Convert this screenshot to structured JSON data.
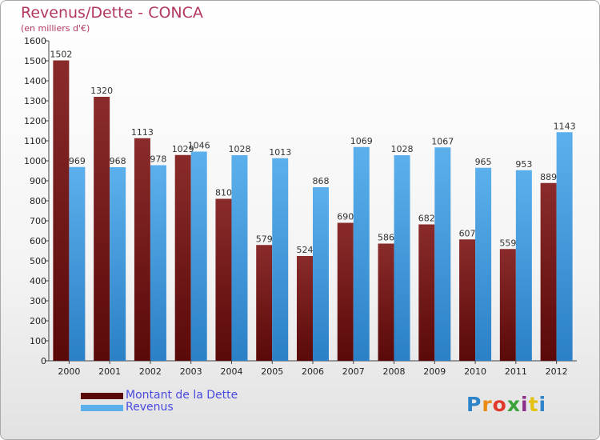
{
  "title": "Revenus/Dette - CONCA",
  "subtitle": "(en milliers d'€)",
  "logo": {
    "text": "Proxiti",
    "colors": [
      "#2d84c8",
      "#e98b14",
      "#e2392e",
      "#3ca33b",
      "#8c2f8c",
      "#e3c212",
      "#2d84c8"
    ]
  },
  "colors": {
    "debt_dark": "#5a0909",
    "debt_light": "#8a2b2b",
    "revenue_dark": "#2b80c6",
    "revenue_light": "#5bb0ec",
    "title": "#b2385e",
    "legend_text": "#4a4adf"
  },
  "chart_data": {
    "type": "bar",
    "categories": [
      "2000",
      "2001",
      "2002",
      "2003",
      "2004",
      "2005",
      "2006",
      "2007",
      "2008",
      "2009",
      "2010",
      "2011",
      "2012"
    ],
    "series": [
      {
        "name": "Montant de la Dette",
        "values": [
          1502,
          1320,
          1113,
          1029,
          810,
          579,
          524,
          690,
          586,
          682,
          607,
          559,
          889
        ]
      },
      {
        "name": "Revenus",
        "values": [
          969,
          968,
          978,
          1046,
          1028,
          1013,
          868,
          1069,
          1028,
          1067,
          965,
          953,
          1143
        ]
      }
    ],
    "ylim": [
      0,
      1600
    ],
    "yticks": [
      0,
      100,
      200,
      300,
      400,
      500,
      600,
      700,
      800,
      900,
      1000,
      1100,
      1200,
      1300,
      1400,
      1500,
      1600
    ],
    "grid": false,
    "legend_position": "bottom-left"
  }
}
